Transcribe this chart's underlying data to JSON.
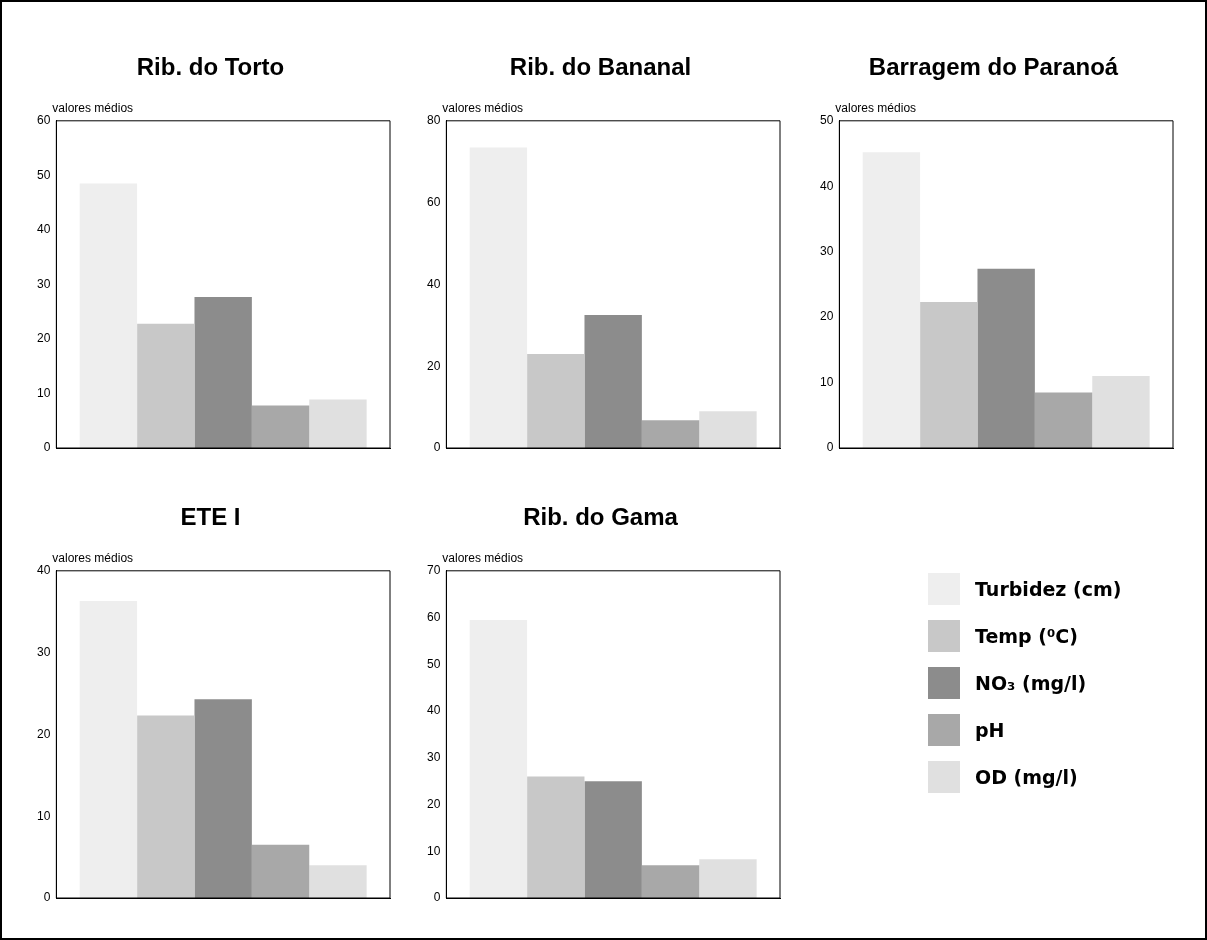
{
  "chart_data": [
    {
      "type": "bar",
      "title": "Rib. do Torto",
      "ylabel": "valores médios",
      "categories": [
        null
      ],
      "ylim": [
        0,
        60
      ],
      "yticks": [
        0,
        10,
        20,
        30,
        40,
        50,
        60
      ],
      "grid": false,
      "tick_labels": "y",
      "series": [
        {
          "color": "#eeeeee",
          "values": [
            48.5
          ]
        },
        {
          "color": "#c8c8c8",
          "values": [
            22.8
          ]
        },
        {
          "color": "#8c8c8c",
          "values": [
            27.7
          ]
        },
        {
          "color": "#a8a8a8",
          "values": [
            7.8
          ]
        },
        {
          "color": "#e0e0e0",
          "values": [
            8.9
          ]
        }
      ]
    },
    {
      "type": "bar",
      "title": "Rib. do Bananal",
      "ylabel": "valores médios",
      "categories": [
        null
      ],
      "ylim": [
        0,
        80
      ],
      "yticks": [
        0,
        20,
        40,
        60,
        80
      ],
      "grid": false,
      "tick_labels": "y",
      "series": [
        {
          "color": "#eeeeee",
          "values": [
            73.5
          ]
        },
        {
          "color": "#c8c8c8",
          "values": [
            23
          ]
        },
        {
          "color": "#8c8c8c",
          "values": [
            32.5
          ]
        },
        {
          "color": "#a8a8a8",
          "values": [
            6.8
          ]
        },
        {
          "color": "#e0e0e0",
          "values": [
            9
          ]
        }
      ]
    },
    {
      "type": "bar",
      "title": "Barragem do Paranoá",
      "ylabel": "valores médios",
      "categories": [
        null
      ],
      "ylim": [
        0,
        50
      ],
      "yticks": [
        0,
        10,
        20,
        30,
        40,
        50
      ],
      "grid": false,
      "tick_labels": "y",
      "series": [
        {
          "color": "#eeeeee",
          "values": [
            45.2
          ]
        },
        {
          "color": "#c8c8c8",
          "values": [
            22.3
          ]
        },
        {
          "color": "#8c8c8c",
          "values": [
            27.4
          ]
        },
        {
          "color": "#a8a8a8",
          "values": [
            8.5
          ]
        },
        {
          "color": "#e0e0e0",
          "values": [
            11
          ]
        }
      ]
    },
    {
      "type": "bar",
      "title": "ETE I",
      "ylabel": "valores médios",
      "categories": [
        null
      ],
      "ylim": [
        0,
        40
      ],
      "yticks": [
        0,
        10,
        20,
        30,
        40
      ],
      "grid": false,
      "tick_labels": "y",
      "series": [
        {
          "color": "#eeeeee",
          "values": [
            36.3
          ]
        },
        {
          "color": "#c8c8c8",
          "values": [
            22.3
          ]
        },
        {
          "color": "#8c8c8c",
          "values": [
            24.3
          ]
        },
        {
          "color": "#a8a8a8",
          "values": [
            6.5
          ]
        },
        {
          "color": "#e0e0e0",
          "values": [
            4
          ]
        }
      ]
    },
    {
      "type": "bar",
      "title": "Rib. do Gama",
      "ylabel": "valores médios",
      "categories": [
        null
      ],
      "ylim": [
        0,
        70
      ],
      "yticks": [
        0,
        10,
        20,
        30,
        40,
        50,
        60,
        70
      ],
      "grid": false,
      "tick_labels": "y",
      "legend": "right",
      "series": [
        {
          "name": "Turbidez (cm)",
          "color": "#eeeeee",
          "values": [
            59.5
          ]
        },
        {
          "name": "Temp (⁰C)",
          "color": "#c8c8c8",
          "values": [
            26
          ]
        },
        {
          "name": "NO₃ (mg/l)",
          "color": "#8c8c8c",
          "values": [
            25
          ]
        },
        {
          "name": "pH",
          "color": "#a8a8a8",
          "values": [
            7
          ]
        },
        {
          "name": "OD (mg/l)",
          "color": "#e0e0e0",
          "values": [
            8.3
          ]
        }
      ]
    }
  ]
}
